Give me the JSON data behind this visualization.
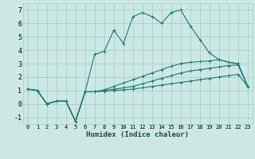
{
  "title": "",
  "xlabel": "Humidex (Indice chaleur)",
  "xlim": [
    -0.5,
    23.5
  ],
  "ylim": [
    -1.5,
    7.5
  ],
  "xticks": [
    0,
    1,
    2,
    3,
    4,
    5,
    6,
    7,
    8,
    9,
    10,
    11,
    12,
    13,
    14,
    15,
    16,
    17,
    18,
    19,
    20,
    21,
    22,
    23
  ],
  "yticks": [
    -1,
    0,
    1,
    2,
    3,
    4,
    5,
    6,
    7
  ],
  "bg_color": "#cce8e5",
  "grid_color": "#aacfcc",
  "line_color": "#1a7a6e",
  "series": [
    [
      1.1,
      1.0,
      0.0,
      0.2,
      0.2,
      -1.3,
      0.9,
      3.7,
      3.9,
      5.5,
      4.5,
      6.5,
      6.8,
      6.5,
      6.0,
      6.8,
      7.0,
      5.8,
      4.8,
      3.8,
      3.3,
      3.1,
      3.0,
      1.3
    ],
    [
      1.1,
      1.0,
      0.0,
      0.2,
      0.2,
      -1.3,
      0.9,
      0.9,
      1.05,
      1.3,
      1.55,
      1.8,
      2.05,
      2.3,
      2.55,
      2.8,
      3.0,
      3.1,
      3.15,
      3.2,
      3.3,
      3.1,
      3.0,
      1.3
    ],
    [
      1.1,
      1.0,
      0.0,
      0.2,
      0.2,
      -1.3,
      0.9,
      0.9,
      1.0,
      1.1,
      1.2,
      1.3,
      1.5,
      1.7,
      1.9,
      2.1,
      2.3,
      2.45,
      2.55,
      2.65,
      2.75,
      2.85,
      2.9,
      1.3
    ],
    [
      1.1,
      1.0,
      0.0,
      0.2,
      0.2,
      -1.3,
      0.9,
      0.9,
      0.95,
      1.0,
      1.05,
      1.1,
      1.2,
      1.3,
      1.4,
      1.5,
      1.6,
      1.7,
      1.8,
      1.9,
      2.0,
      2.1,
      2.2,
      1.3
    ]
  ]
}
